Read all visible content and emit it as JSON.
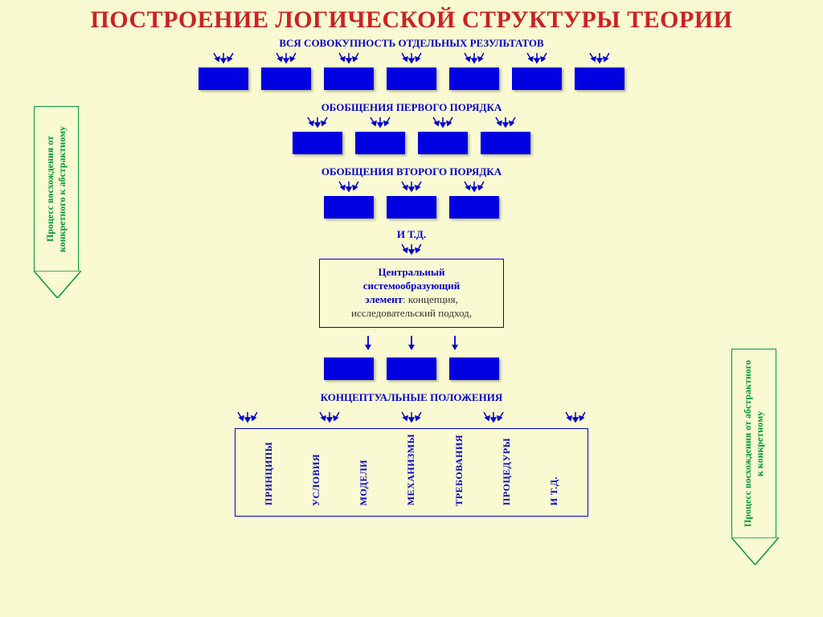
{
  "title": "ПОСТРОЕНИЕ ЛОГИЧЕСКОЙ СТРУКТУРЫ ТЕОРИИ",
  "colors": {
    "bg": "#fafad2",
    "title": "#cc2222",
    "label": "#0000cc",
    "block": "#0000e0",
    "side_border": "#009933"
  },
  "levels": [
    {
      "label": "ВСЯ СОВОКУПНОСТЬ ОТДЕЛЬНЫХ РЕЗУЛЬТАТОВ",
      "blocks": 7
    },
    {
      "label": "ОБОБЩЕНИЯ ПЕРВОГО ПОРЯДКА",
      "blocks": 4
    },
    {
      "label": "ОБОБЩЕНИЯ ВТОРОГО ПОРЯДКА",
      "blocks": 3
    },
    {
      "label": "И  Т.Д.",
      "blocks": 0
    }
  ],
  "central": {
    "bold1": "Центральный",
    "bold2": "системообразующий",
    "bold3": "элемент",
    "rest": ": концепция, исследовательский подход,"
  },
  "below_central_blocks": 3,
  "conceptual_label": "КОНЦЕПТУАЛЬНЫЕ ПОЛОЖЕНИЯ",
  "bottom_box_items": [
    "ПРИНЦИПЫ",
    "УСЛОВИЯ",
    "МОДЕЛИ",
    "МЕХАНИЗМЫ",
    "ТРЕБОВАНИЯ",
    "ПРОЦЕДУРЫ",
    "И  Т.Д."
  ],
  "left_side": "Процесс восхождения от конкретного к абстрактному",
  "right_side": "Процесс восхождения от абстрактного к конкретному",
  "arrow_cluster_per_block": 3,
  "bottom_arrow_clusters": 5
}
